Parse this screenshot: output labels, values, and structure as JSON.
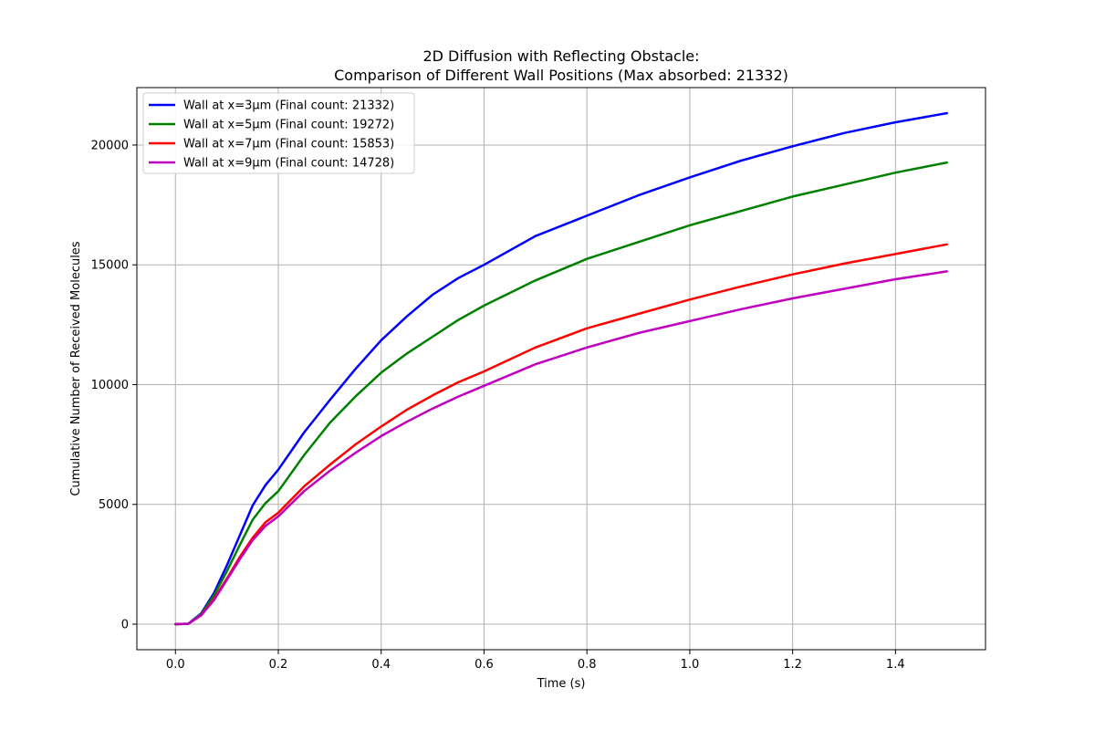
{
  "chart_data": {
    "type": "line",
    "title_line1": "2D Diffusion with Reflecting Obstacle:",
    "title_line2": "Comparison of Different Wall Positions (Max absorbed: 21332)",
    "xlabel": "Time (s)",
    "ylabel": "Cumulative Number of Received Molecules",
    "xlim": [
      -0.075,
      1.575
    ],
    "ylim": [
      -1066.6,
      22398.6
    ],
    "xticks": [
      0.0,
      0.2,
      0.4,
      0.6,
      0.8,
      1.0,
      1.2,
      1.4
    ],
    "xtick_labels": [
      "0.0",
      "0.2",
      "0.4",
      "0.6",
      "0.8",
      "1.0",
      "1.2",
      "1.4"
    ],
    "yticks": [
      0,
      5000,
      10000,
      15000,
      20000
    ],
    "ytick_labels": [
      "0",
      "5000",
      "10000",
      "15000",
      "20000"
    ],
    "grid": true,
    "legend_position": "top-left",
    "series": [
      {
        "name": "Wall at x=3μm (Final count: 21332)",
        "color": "#0000ff",
        "x": [
          0.0,
          0.025,
          0.05,
          0.075,
          0.1,
          0.125,
          0.15,
          0.175,
          0.2,
          0.25,
          0.3,
          0.35,
          0.4,
          0.45,
          0.5,
          0.55,
          0.6,
          0.7,
          0.8,
          0.9,
          1.0,
          1.1,
          1.2,
          1.3,
          1.4,
          1.5
        ],
        "y": [
          0,
          20,
          450,
          1300,
          2450,
          3700,
          4950,
          5800,
          6450,
          8000,
          9350,
          10650,
          11850,
          12850,
          13750,
          14450,
          15000,
          16200,
          17050,
          17900,
          18650,
          19350,
          19950,
          20500,
          20950,
          21332
        ]
      },
      {
        "name": "Wall at x=5μm (Final count: 19272)",
        "color": "#008000",
        "x": [
          0.0,
          0.025,
          0.05,
          0.075,
          0.1,
          0.125,
          0.15,
          0.175,
          0.2,
          0.25,
          0.3,
          0.35,
          0.4,
          0.45,
          0.5,
          0.55,
          0.6,
          0.7,
          0.8,
          0.9,
          1.0,
          1.1,
          1.2,
          1.3,
          1.4,
          1.5
        ],
        "y": [
          0,
          20,
          420,
          1200,
          2200,
          3300,
          4350,
          5050,
          5550,
          7050,
          8400,
          9500,
          10500,
          11300,
          12000,
          12700,
          13300,
          14350,
          15250,
          15950,
          16650,
          17250,
          17850,
          18350,
          18850,
          19272
        ]
      },
      {
        "name": "Wall at x=7μm (Final count: 15853)",
        "color": "#ff0000",
        "x": [
          0.0,
          0.025,
          0.05,
          0.075,
          0.1,
          0.125,
          0.15,
          0.175,
          0.2,
          0.25,
          0.3,
          0.35,
          0.4,
          0.45,
          0.5,
          0.55,
          0.6,
          0.7,
          0.8,
          0.9,
          1.0,
          1.1,
          1.2,
          1.3,
          1.4,
          1.5
        ],
        "y": [
          0,
          15,
          380,
          1050,
          1900,
          2800,
          3600,
          4250,
          4650,
          5750,
          6650,
          7500,
          8250,
          8950,
          9550,
          10100,
          10550,
          11550,
          12350,
          12950,
          13550,
          14100,
          14600,
          15050,
          15450,
          15853
        ]
      },
      {
        "name": "Wall at x=9μm (Final count: 14728)",
        "color": "#bf00bf",
        "x": [
          0.0,
          0.025,
          0.05,
          0.075,
          0.1,
          0.125,
          0.15,
          0.175,
          0.2,
          0.25,
          0.3,
          0.35,
          0.4,
          0.45,
          0.5,
          0.55,
          0.6,
          0.7,
          0.8,
          0.9,
          1.0,
          1.1,
          1.2,
          1.3,
          1.4,
          1.5
        ],
        "y": [
          0,
          15,
          370,
          1000,
          1850,
          2700,
          3500,
          4100,
          4500,
          5550,
          6400,
          7150,
          7850,
          8450,
          9000,
          9500,
          9950,
          10850,
          11550,
          12150,
          12650,
          13150,
          13600,
          14000,
          14400,
          14728
        ]
      }
    ]
  }
}
